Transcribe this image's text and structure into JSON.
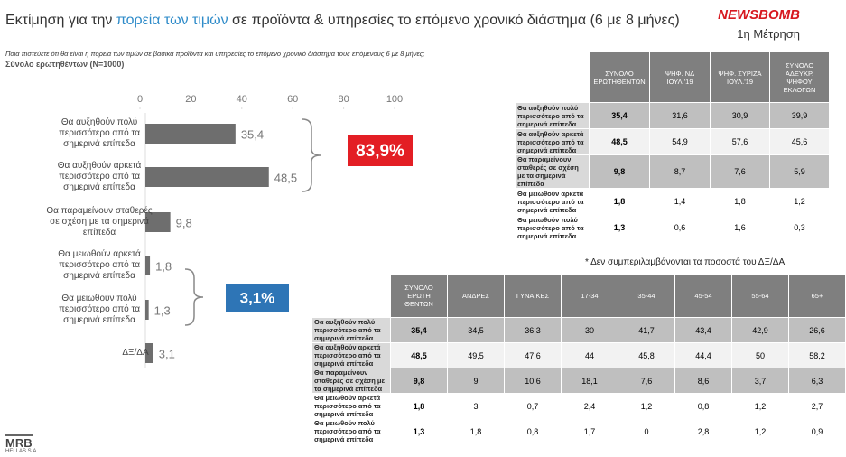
{
  "header": {
    "title_before": "Εκτίμηση για την ",
    "title_highlight": "πορεία των τιμών",
    "title_after": " σε προϊόντα & υπηρεσίες το επόμενο  χρονικό διάστημα (6 με 8 μήνες)",
    "logo": "NEWSBOMB",
    "wave": "1η Μέτρηση",
    "question": "Ποια πιστεύετε ότι θα είναι η πορεία των τιμών σε βασικά προϊόντα και υπηρεσίες το επόμενο  χρονικό διάστημα τους επόμενους 6 με 8 μήνες;",
    "base": "Σύνολο ερωτηθέντων (N=1000)"
  },
  "chart_data": {
    "type": "hbar",
    "categories": [
      "Θα αυξηθούν πολύ περισσότερο από τα σημερινά επίπεδα",
      "Θα αυξηθούν αρκετά περισσότερο από τα σημερινά επίπεδα",
      "Θα παραμείνουν σταθερές σε σχέση με τα σημερινά επίπεδα",
      "Θα μειωθούν αρκετά περισσότερο από τα σημερινά επίπεδα",
      "Θα μειωθούν πολύ περισσότερο από τα σημερινά επίπεδα",
      "ΔΞ/ΔΑ"
    ],
    "values": [
      35.4,
      48.5,
      9.8,
      1.8,
      1.3,
      3.1
    ],
    "value_labels": [
      "35,4",
      "48,5",
      "9,8",
      "1,8",
      "1,3",
      "3,1"
    ],
    "color": "#6e6e6e",
    "xlim": [
      0,
      100
    ],
    "xticks": [
      0,
      20,
      40,
      60,
      80,
      100
    ],
    "annotations": [
      {
        "text": "83,9%",
        "color": "#e31e24"
      },
      {
        "text": "3,1%",
        "color": "#2e75b6"
      }
    ]
  },
  "note": "* Δεν συμπεριλαμβάνονται τα ποσοστά του ΔΞ/ΔΑ",
  "table1": {
    "columns": [
      "ΣΥΝΟΛΟ ΕΡΩΤΗΘΕΝΤΩΝ",
      "ΨΗΦ. ΝΔ ΙΟΥΛ.'19",
      "ΨΗΦ. ΣΥΡΙΖΑ ΙΟΥΛ.'19",
      "ΣΥΝΟΛΟ ΑΔΕΥΚΡ. ΨΗΦΟΥ ΕΚΛΟΓΩΝ"
    ],
    "rows": [
      [
        "Θα αυξηθούν πολύ περισσότερο από τα σημερινά επίπεδα",
        "35,4",
        "31,6",
        "30,9",
        "39,9"
      ],
      [
        "Θα αυξηθούν αρκετά περισσότερο από τα σημερινά επίπεδα",
        "48,5",
        "54,9",
        "57,6",
        "45,6"
      ],
      [
        "Θα παραμείνουν σταθερές σε σχέση με τα σημερινά επίπεδα",
        "9,8",
        "8,7",
        "7,6",
        "5,9"
      ],
      [
        "Θα μειωθούν αρκετά περισσότερο από τα σημερινά επίπεδα",
        "1,8",
        "1,4",
        "1,8",
        "1,2"
      ],
      [
        "Θα μειωθούν πολύ περισσότερο από τα σημερινά επίπεδα",
        "1,3",
        "0,6",
        "1,6",
        "0,3"
      ]
    ]
  },
  "table2": {
    "columns": [
      "ΣΥΝΟΛΟ ΕΡΩΤΗ ΘΕΝΤΩΝ",
      "ΑΝΔΡΕΣ",
      "ΓΥΝΑΙΚΕΣ",
      "17-34",
      "35-44",
      "45-54",
      "55-64",
      "65+"
    ],
    "rows": [
      [
        "Θα αυξηθούν πολύ περισσότερο από τα σημερινά επίπεδα",
        "35,4",
        "34,5",
        "36,3",
        "30",
        "41,7",
        "43,4",
        "42,9",
        "26,6"
      ],
      [
        "Θα αυξηθούν αρκετά περισσότερο από τα σημερινά επίπεδα",
        "48,5",
        "49,5",
        "47,6",
        "44",
        "45,8",
        "44,4",
        "50",
        "58,2"
      ],
      [
        "Θα παραμείνουν σταθερές σε σχέση με τα σημερινά επίπεδα",
        "9,8",
        "9",
        "10,6",
        "18,1",
        "7,6",
        "8,6",
        "3,7",
        "6,3"
      ],
      [
        "Θα μειωθούν αρκετά περισσότερο από τα σημερινά επίπεδα",
        "1,8",
        "3",
        "0,7",
        "2,4",
        "1,2",
        "0,8",
        "1,2",
        "2,7"
      ],
      [
        "Θα μειωθούν πολύ περισσότερο από τα σημερινά επίπεδα",
        "1,3",
        "1,8",
        "0,8",
        "1,7",
        "0",
        "2,8",
        "1,2",
        "0,9"
      ]
    ]
  },
  "footer": {
    "brand": "MRB",
    "brand_sub": "HELLAS S.A."
  }
}
